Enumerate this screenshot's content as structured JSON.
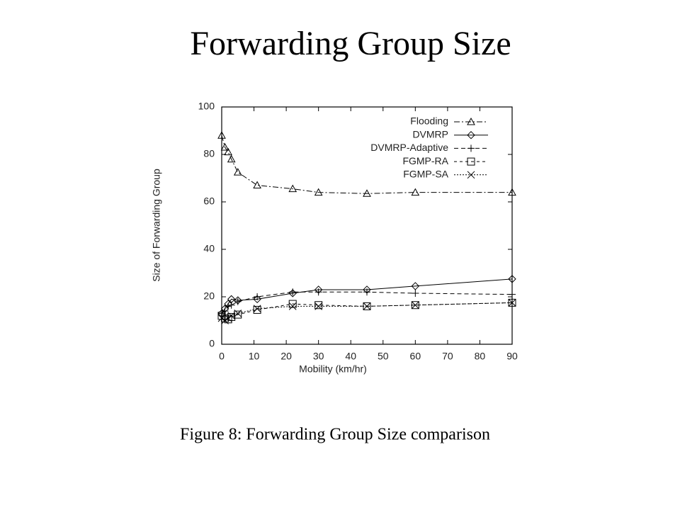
{
  "slide_title": "Forwarding Group Size",
  "caption": "Figure 8: Forwarding Group Size comparison",
  "chart_data": {
    "type": "line",
    "xlabel": "Mobility (km/hr)",
    "ylabel": "Size of Forwarding Group",
    "x": [
      0,
      1,
      2,
      3,
      5,
      11,
      22,
      30,
      45,
      60,
      90
    ],
    "xlim": [
      0,
      90
    ],
    "xticks": [
      0,
      10,
      20,
      30,
      40,
      50,
      60,
      70,
      80,
      90
    ],
    "ylim": [
      0,
      100
    ],
    "yticks": [
      0,
      20,
      40,
      60,
      80,
      100
    ],
    "legend": "upper right",
    "series": [
      {
        "name": "Flooding",
        "color": "#000000",
        "marker": "triangle",
        "values": [
          88,
          83,
          81,
          78,
          72.5,
          67,
          65.5,
          64,
          63.5,
          64,
          64
        ]
      },
      {
        "name": "DVMRP",
        "color": "#000000",
        "marker": "diamond",
        "values": [
          13,
          15,
          17,
          19,
          18.5,
          19,
          21.5,
          23,
          23,
          24.5,
          27.5
        ]
      },
      {
        "name": "DVMRP-Adaptive",
        "color": "#000000",
        "marker": "plus",
        "values": [
          13,
          14,
          16,
          16.5,
          18,
          20,
          22,
          22,
          22,
          21.5,
          21
        ]
      },
      {
        "name": "FGMP-RA",
        "color": "#000000",
        "marker": "square",
        "values": [
          12,
          11,
          10.5,
          11.5,
          12.5,
          14.5,
          17,
          16.5,
          16,
          16.5,
          17.5
        ]
      },
      {
        "name": "FGMP-SA",
        "color": "#000000",
        "marker": "x",
        "values": [
          11,
          10,
          11,
          12,
          13,
          15,
          16,
          16,
          16,
          16.5,
          17.5
        ]
      }
    ]
  }
}
